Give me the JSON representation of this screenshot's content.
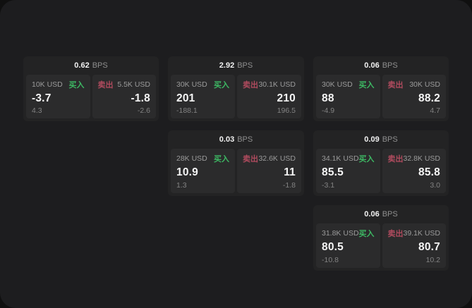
{
  "labels": {
    "bps": "BPS",
    "buy": "买入",
    "sell": "卖出"
  },
  "colors": {
    "buy": "#3db863",
    "sell": "#b04b5e",
    "panel_bg": "#1d1d1f",
    "card_bg": "#232324",
    "subpanel_bg": "#2b2b2c"
  },
  "cards": [
    {
      "row": 1,
      "col": 1,
      "bps": "0.62",
      "buy": {
        "amount": "10K USD",
        "price": "-3.7",
        "delta": "4.3"
      },
      "sell": {
        "amount": "5.5K USD",
        "price": "-1.8",
        "delta": "-2.6"
      }
    },
    {
      "row": 1,
      "col": 2,
      "bps": "2.92",
      "buy": {
        "amount": "30K USD",
        "price": "201",
        "delta": "-188.1"
      },
      "sell": {
        "amount": "30.1K USD",
        "price": "210",
        "delta": "196.5"
      }
    },
    {
      "row": 1,
      "col": 3,
      "bps": "0.06",
      "buy": {
        "amount": "30K USD",
        "price": "88",
        "delta": "-4.9"
      },
      "sell": {
        "amount": "30K USD",
        "price": "88.2",
        "delta": "4.7"
      }
    },
    {
      "row": 2,
      "col": 2,
      "bps": "0.03",
      "buy": {
        "amount": "28K USD",
        "price": "10.9",
        "delta": "1.3"
      },
      "sell": {
        "amount": "32.6K USD",
        "price": "11",
        "delta": "-1.8"
      }
    },
    {
      "row": 2,
      "col": 3,
      "bps": "0.09",
      "buy": {
        "amount": "34.1K USD",
        "price": "85.5",
        "delta": "-3.1"
      },
      "sell": {
        "amount": "32.8K USD",
        "price": "85.8",
        "delta": "3.0"
      }
    },
    {
      "row": 3,
      "col": 3,
      "bps": "0.06",
      "buy": {
        "amount": "31.8K USD",
        "price": "80.5",
        "delta": "-10.8"
      },
      "sell": {
        "amount": "39.1K USD",
        "price": "80.7",
        "delta": "10.2"
      }
    }
  ]
}
